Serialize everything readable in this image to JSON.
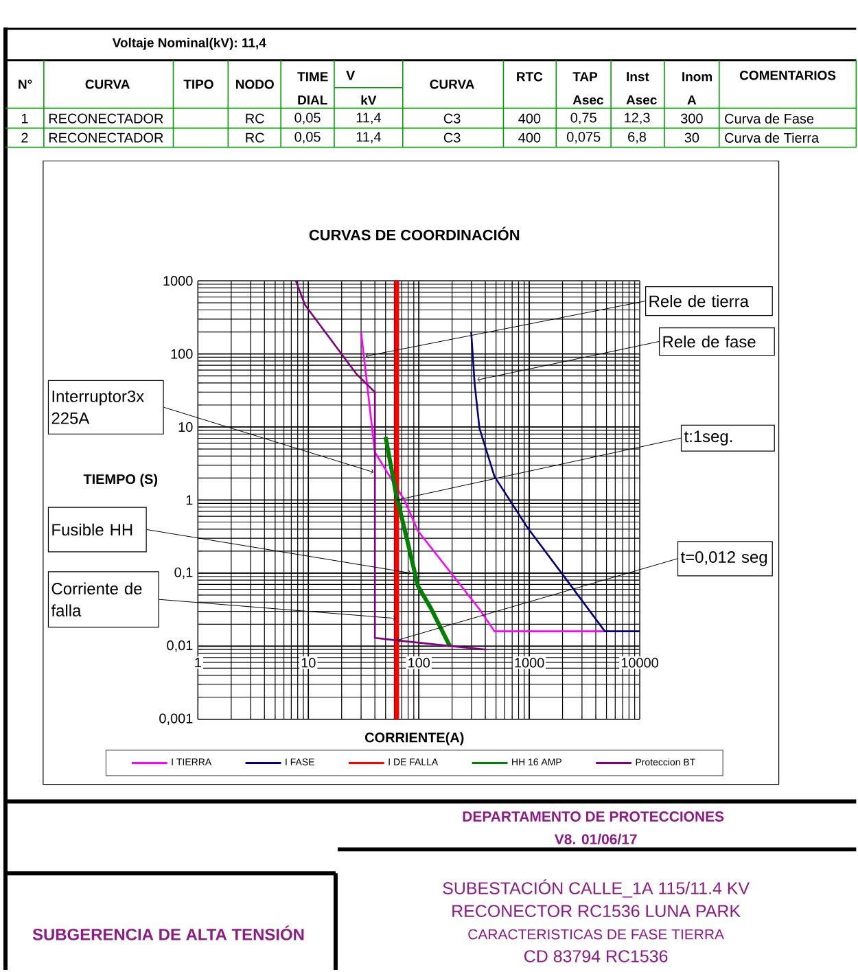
{
  "chart_data": {
    "type": "line",
    "title": "CURVAS  DE COORDINACIÓN",
    "xlabel": "CORRIENTE(A)",
    "ylabel": "TIEMPO (S)",
    "log": "xy",
    "grid": true,
    "legend": "bottom",
    "xlim": [
      1,
      10000
    ],
    "ylim": [
      0.001,
      1000
    ],
    "xticks": [
      1,
      10,
      100,
      1000,
      10000
    ],
    "yticks": [
      {
        "value": 0.001,
        "label": "0,001"
      },
      {
        "value": 0.01,
        "label": "0,01"
      },
      {
        "value": 0.1,
        "label": "0,1"
      },
      1,
      10,
      100,
      1000
    ],
    "series": [
      {
        "name": "I TIERRA",
        "color": "#ff00ff",
        "x": [
          30,
          40,
          74,
          98,
          354,
          484,
          4830
        ],
        "values": [
          200,
          4.5,
          1,
          0.38,
          0.032,
          0.016,
          0.016
        ]
      },
      {
        "name": "I FASE",
        "color": "#000080",
        "x": [
          298,
          320,
          354,
          484,
          962,
          1960,
          4830,
          10000
        ],
        "values": [
          200,
          39,
          9.6,
          2.1,
          0.42,
          0.1,
          0.016,
          0.016
        ]
      },
      {
        "name": "I DE FALLA",
        "color": "#ff0000",
        "x": [
          63,
          63
        ],
        "values": [
          0.001,
          1000
        ]
      },
      {
        "name": "HH 16 AMP",
        "color": "#008000",
        "x": [
          50,
          62,
          79,
          98,
          130,
          191
        ],
        "values": [
          7.3,
          1.24,
          0.27,
          0.067,
          0.032,
          0.01
        ]
      },
      {
        "name": "Proteccion BT",
        "color": "#800080",
        "x": [
          7.7,
          9.3,
          27,
          40,
          40,
          63,
          199,
          408
        ],
        "values": [
          1000,
          470,
          54,
          30,
          0.013,
          0.012,
          0.01,
          0.009
        ]
      }
    ],
    "annotations": [
      "Voltaje Nominal(kV): 11,4",
      "N°",
      "CURVA",
      "TIPO",
      "NODO",
      "TIME DIAL",
      "V",
      "kV",
      "CURVA",
      "RTC",
      "TAP Asec",
      "Inst Asec",
      "Inom A",
      "COMENTARIOS",
      "1",
      "RECONECTADOR",
      "RC",
      "0,05",
      "11,4",
      "C3",
      "400",
      "0,75",
      "12,3",
      "300",
      "Curva de Fase",
      "2",
      "RECONECTADOR",
      "RC",
      "0,05",
      "11,4",
      "C3",
      "400",
      "0,075",
      "6,8",
      "30",
      "Curva de Tierra",
      "DEPARTAMENTO DE PROTECCIONES",
      "V8. 01/06/17",
      "SUBGERENCIA DE ALTA TENSIÓN",
      "SUBESTACIÓN CALLE_1A  115/11.4 KV",
      "RECONECTOR RC1536 LUNA PARK",
      "CARACTERISTICAS DE FASE TIERRA",
      "CD 83794 RC1536",
      {
        "text": "Rele de tierra",
        "x": 33,
        "y": 93
      },
      {
        "text": "Rele de fase",
        "x": 338,
        "y": 44
      },
      {
        "text": "Interruptor3x 225A",
        "x": 39,
        "y": 2.4
      },
      {
        "text": "t:1seg.",
        "x": 63,
        "y": 1
      },
      {
        "text": "Fusible HH",
        "x": 85,
        "y": 0.1
      },
      {
        "text": "Corriente de falla",
        "x": 62,
        "y": 0.024
      },
      {
        "text": "t=0,012 seg",
        "x": 63,
        "y": 0.012
      }
    ]
  }
}
